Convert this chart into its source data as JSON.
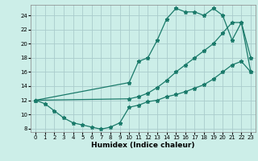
{
  "xlabel": "Humidex (Indice chaleur)",
  "bg_color": "#cceee8",
  "grid_color": "#aacccc",
  "line_color": "#1a7a6a",
  "xlim": [
    -0.5,
    23.5
  ],
  "ylim": [
    7.5,
    25.5
  ],
  "yticks": [
    8,
    10,
    12,
    14,
    16,
    18,
    20,
    22,
    24
  ],
  "xticks": [
    0,
    1,
    2,
    3,
    4,
    5,
    6,
    7,
    8,
    9,
    10,
    11,
    12,
    13,
    14,
    15,
    16,
    17,
    18,
    19,
    20,
    21,
    22,
    23
  ],
  "line1_x": [
    0,
    1,
    2,
    3,
    4,
    5,
    6,
    7,
    8,
    9,
    10,
    11,
    12,
    13,
    14,
    15,
    16,
    17,
    18,
    19,
    20,
    21,
    22,
    23
  ],
  "line1_y": [
    12,
    11.5,
    10.5,
    9.5,
    8.8,
    8.5,
    8.2,
    7.9,
    8.2,
    8.8,
    11.0,
    11.3,
    11.8,
    12.0,
    12.5,
    12.8,
    13.2,
    13.7,
    14.2,
    15.0,
    16.0,
    17.0,
    17.5,
    16.0
  ],
  "line2_x": [
    0,
    10,
    11,
    12,
    13,
    14,
    15,
    16,
    17,
    18,
    19,
    20,
    21,
    22,
    23
  ],
  "line2_y": [
    12,
    14.5,
    17.5,
    18.0,
    20.5,
    23.5,
    25.0,
    24.5,
    24.5,
    24.0,
    25.0,
    24.0,
    20.5,
    23.0,
    18.0
  ],
  "line3_x": [
    0,
    10,
    11,
    12,
    13,
    14,
    15,
    16,
    17,
    18,
    19,
    20,
    21,
    22,
    23
  ],
  "line3_y": [
    12,
    12.2,
    12.5,
    13.0,
    13.8,
    14.8,
    16.0,
    17.0,
    18.0,
    19.0,
    20.0,
    21.5,
    23.0,
    23.0,
    16.0
  ],
  "xlabel_fontsize": 6.5,
  "tick_fontsize": 5.0,
  "lw": 0.9,
  "ms": 3.5
}
